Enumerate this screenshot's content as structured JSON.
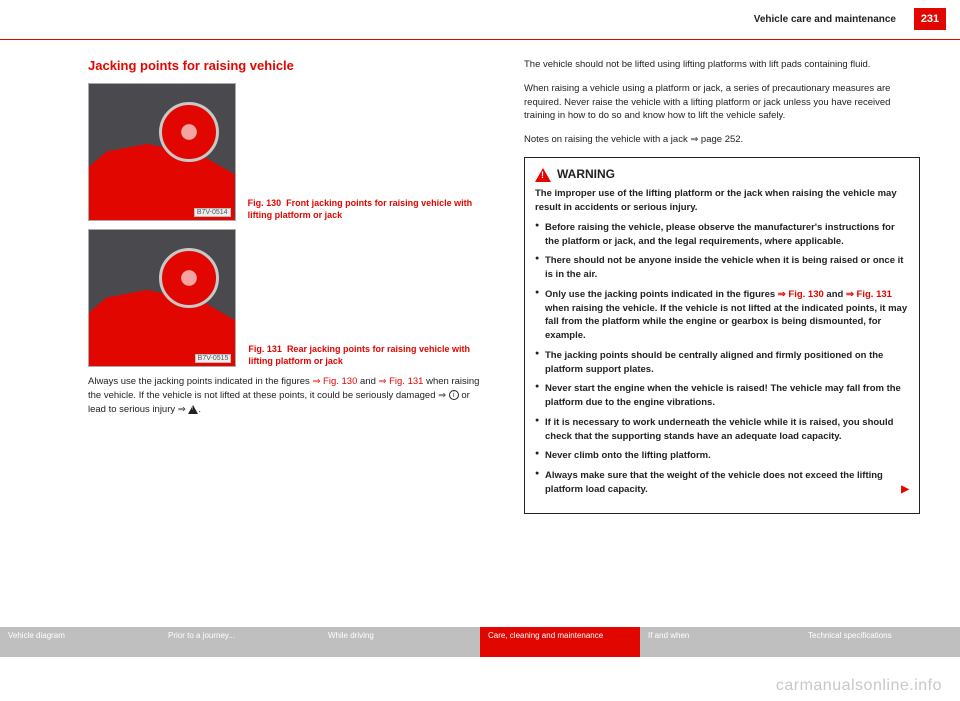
{
  "header": {
    "section": "Vehicle care and maintenance",
    "page": "231"
  },
  "left": {
    "title": "Jacking points for raising vehicle",
    "fig130": {
      "label": "B7V-0514",
      "no": "Fig. 130",
      "text": "Front jacking points for raising vehicle with lifting platform or jack"
    },
    "fig131": {
      "label": "B7V-0515",
      "no": "Fig. 131",
      "text": "Rear jacking points for raising vehicle with lifting platform or jack"
    },
    "p1a": "Always use the jacking points indicated in the figures ",
    "p1_ref1": "⇒ Fig. 130",
    "p1b": " and ",
    "p1_ref2": "⇒ Fig. 131",
    "p1c": " when raising the vehicle. If the vehicle is not lifted at these points, it could be seriously damaged ⇒ ",
    "p1d": " or lead to serious injury ⇒ "
  },
  "right": {
    "p1": "The vehicle should not be lifted using lifting platforms with lift pads containing fluid.",
    "p2": "When raising a vehicle using a platform or jack, a series of precautionary measures are required. Never raise the vehicle with a lifting platform or jack unless you have received training in how to do so and know how to lift the vehicle safely.",
    "p3": "Notes on raising the vehicle with a jack ⇒ page 252.",
    "warn": {
      "title": "WARNING",
      "intro": "The improper use of the lifting platform or the jack when raising the vehicle may result in accidents or serious injury.",
      "b1": "Before raising the vehicle, please observe the manufacturer's instructions for the platform or jack, and the legal requirements, where applicable.",
      "b2": "There should not be anyone inside the vehicle when it is being raised or once it is in the air.",
      "b3a": "Only use the jacking points indicated in the figures ",
      "b3_ref1": "⇒ Fig. 130",
      "b3b": " and ",
      "b3_ref2": "⇒ Fig. 131",
      "b3c": " when raising the vehicle. If the vehicle is not lifted at the indicated points, it may fall from the platform while the engine or gearbox is being dismounted, for example.",
      "b4": "The jacking points should be centrally aligned and firmly positioned on the platform support plates.",
      "b5": "Never start the engine when the vehicle is raised! The vehicle may fall from the platform due to the engine vibrations.",
      "b6": "If it is necessary to work underneath the vehicle while it is raised, you should check that the supporting stands have an adequate load capacity.",
      "b7": "Never climb onto the lifting platform.",
      "b8": "Always make sure that the weight of the vehicle does not exceed the lifting platform load capacity."
    }
  },
  "footer": {
    "t1": "Vehicle diagram",
    "t2": "Prior to a journey...",
    "t3": "While driving",
    "t4": "Care, cleaning and maintenance",
    "t5": "If and when",
    "t6": "Technical specifications"
  },
  "watermark": "carmanualsonline.info"
}
